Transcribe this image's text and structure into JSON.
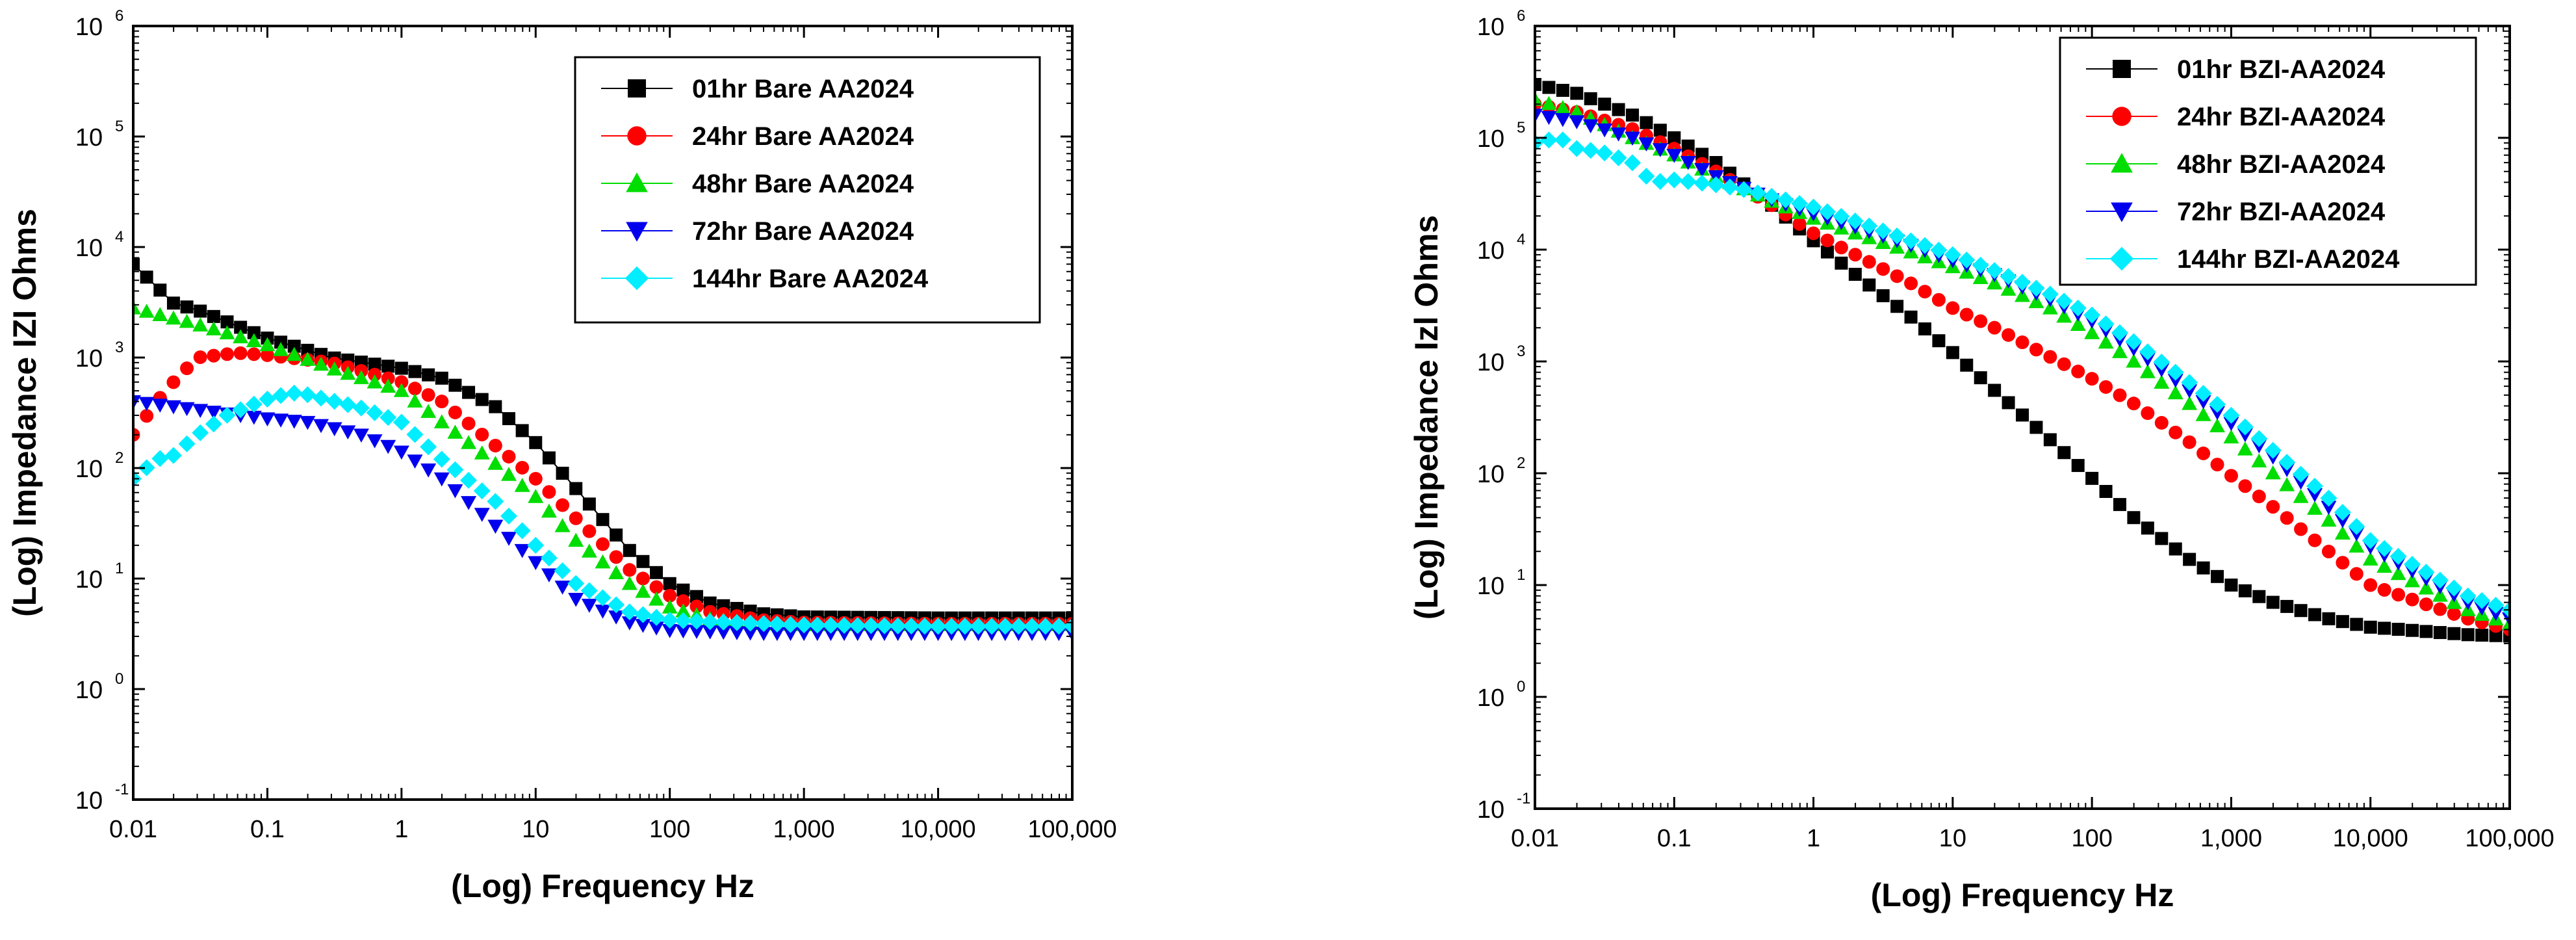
{
  "chart_data": [
    {
      "type": "scatter",
      "title": "",
      "xlabel": "(Log) Frequency Hz",
      "ylabel": "(Log) Impedance IZI Ohms",
      "xscale": "log",
      "yscale": "log",
      "xlim": [
        0.01,
        100000
      ],
      "ylim": [
        0.1,
        1000000
      ],
      "x_tick_labels": [
        "0.01",
        "0.1",
        "1",
        "10",
        "100",
        "1,000",
        "10,000",
        "100,000"
      ],
      "y_tick_labels": [
        {
          "base": "10",
          "exp": "-1"
        },
        {
          "base": "10",
          "exp": "0"
        },
        {
          "base": "10",
          "exp": "1"
        },
        {
          "base": "10",
          "exp": "2"
        },
        {
          "base": "10",
          "exp": "3"
        },
        {
          "base": "10",
          "exp": "4"
        },
        {
          "base": "10",
          "exp": "5"
        },
        {
          "base": "10",
          "exp": "6"
        }
      ],
      "legend_position": "top-right",
      "series": [
        {
          "name": "01hr  Bare AA2024",
          "color": "#000000",
          "marker": "square",
          "connected": true,
          "points": [
            [
              0.01,
              7000
            ],
            [
              0.02,
              3100
            ],
            [
              0.03,
              2700
            ],
            [
              0.1,
              1500
            ],
            [
              0.3,
              1000
            ],
            [
              1,
              800
            ],
            [
              2,
              650
            ],
            [
              5,
              360
            ],
            [
              10,
              170
            ],
            [
              20,
              65
            ],
            [
              50,
              18
            ],
            [
              100,
              9
            ],
            [
              200,
              6
            ],
            [
              500,
              4.8
            ],
            [
              1000,
              4.5
            ],
            [
              10000,
              4.4
            ],
            [
              100000,
              4.4
            ]
          ]
        },
        {
          "name": "24hr  Bare AA2024",
          "color": "#ff0000",
          "marker": "circle",
          "connected": false,
          "points": [
            [
              0.01,
              200
            ],
            [
              0.015,
              400
            ],
            [
              0.02,
              600
            ],
            [
              0.03,
              1000
            ],
            [
              0.06,
              1100
            ],
            [
              0.1,
              1050
            ],
            [
              0.3,
              900
            ],
            [
              1,
              600
            ],
            [
              2,
              400
            ],
            [
              5,
              160
            ],
            [
              10,
              80
            ],
            [
              20,
              35
            ],
            [
              50,
              12
            ],
            [
              100,
              7
            ],
            [
              200,
              5
            ],
            [
              500,
              4.2
            ],
            [
              1000,
              4
            ],
            [
              10000,
              3.9
            ],
            [
              100000,
              3.9
            ]
          ]
        },
        {
          "name": "48hr  Bare AA2024",
          "color": "#00dd00",
          "marker": "triangle-up",
          "connected": false,
          "points": [
            [
              0.01,
              2800
            ],
            [
              0.03,
              2000
            ],
            [
              0.1,
              1300
            ],
            [
              0.3,
              800
            ],
            [
              1,
              500
            ],
            [
              2,
              260
            ],
            [
              5,
              110
            ],
            [
              10,
              55
            ],
            [
              20,
              22
            ],
            [
              50,
              9
            ],
            [
              100,
              5.5
            ],
            [
              200,
              4.3
            ],
            [
              500,
              3.9
            ],
            [
              1000,
              3.8
            ],
            [
              10000,
              3.8
            ],
            [
              100000,
              3.8
            ]
          ]
        },
        {
          "name": "72hr  Bare AA2024",
          "color": "#0000ee",
          "marker": "triangle-down",
          "connected": false,
          "points": [
            [
              0.01,
              400
            ],
            [
              0.02,
              360
            ],
            [
              0.05,
              310
            ],
            [
              0.1,
              280
            ],
            [
              0.2,
              260
            ],
            [
              0.5,
              200
            ],
            [
              1,
              140
            ],
            [
              2,
              80
            ],
            [
              5,
              30
            ],
            [
              10,
              14
            ],
            [
              20,
              6.5
            ],
            [
              50,
              4
            ],
            [
              100,
              3.4
            ],
            [
              500,
              3.2
            ],
            [
              1000,
              3.2
            ],
            [
              10000,
              3.2
            ],
            [
              100000,
              3.2
            ]
          ]
        },
        {
          "name": "144hr Bare AA2024",
          "color": "#00eeff",
          "marker": "diamond",
          "connected": false,
          "points": [
            [
              0.01,
              80
            ],
            [
              0.015,
              120
            ],
            [
              0.02,
              130
            ],
            [
              0.03,
              200
            ],
            [
              0.05,
              300
            ],
            [
              0.08,
              380
            ],
            [
              0.1,
              420
            ],
            [
              0.15,
              480
            ],
            [
              0.2,
              460
            ],
            [
              0.5,
              350
            ],
            [
              1,
              260
            ],
            [
              2,
              120
            ],
            [
              5,
              50
            ],
            [
              10,
              20
            ],
            [
              20,
              9
            ],
            [
              50,
              5
            ],
            [
              100,
              4.2
            ],
            [
              1000,
              3.8
            ],
            [
              10000,
              3.7
            ],
            [
              100000,
              3.7
            ]
          ]
        }
      ]
    },
    {
      "type": "scatter",
      "title": "",
      "xlabel": "(Log) Frequency Hz",
      "ylabel": "(Log) Impedance Izl Ohms",
      "xscale": "log",
      "yscale": "log",
      "xlim": [
        0.01,
        100000
      ],
      "ylim": [
        0.1,
        1000000
      ],
      "x_tick_labels": [
        "0.01",
        "0.1",
        "1",
        "10",
        "100",
        "1,000",
        "10,000",
        "100,000"
      ],
      "y_tick_labels": [
        {
          "base": "10",
          "exp": "-1"
        },
        {
          "base": "10",
          "exp": "0"
        },
        {
          "base": "10",
          "exp": "1"
        },
        {
          "base": "10",
          "exp": "2"
        },
        {
          "base": "10",
          "exp": "3"
        },
        {
          "base": "10",
          "exp": "4"
        },
        {
          "base": "10",
          "exp": "5"
        },
        {
          "base": "10",
          "exp": "6"
        }
      ],
      "legend_position": "top-right",
      "series": [
        {
          "name": "01hr  BZI-AA2024",
          "color": "#000000",
          "marker": "square",
          "connected": false,
          "points": [
            [
              0.01,
              300000
            ],
            [
              0.02,
              250000
            ],
            [
              0.05,
              160000
            ],
            [
              0.1,
              100000
            ],
            [
              0.2,
              60000
            ],
            [
              0.5,
              25000
            ],
            [
              1,
              12000
            ],
            [
              2,
              6000
            ],
            [
              5,
              2500
            ],
            [
              10,
              1200
            ],
            [
              20,
              550
            ],
            [
              50,
              200
            ],
            [
              100,
              90
            ],
            [
              200,
              40
            ],
            [
              500,
              17
            ],
            [
              1000,
              10
            ],
            [
              2000,
              7
            ],
            [
              5000,
              5
            ],
            [
              10000,
              4.2
            ],
            [
              50000,
              3.6
            ],
            [
              100000,
              3.5
            ]
          ]
        },
        {
          "name": "24hr  BZI-AA2024",
          "color": "#ff0000",
          "marker": "circle",
          "connected": false,
          "points": [
            [
              0.01,
              200000
            ],
            [
              0.02,
              170000
            ],
            [
              0.05,
              120000
            ],
            [
              0.1,
              80000
            ],
            [
              0.2,
              50000
            ],
            [
              0.5,
              25000
            ],
            [
              1,
              14000
            ],
            [
              2,
              9000
            ],
            [
              5,
              5000
            ],
            [
              10,
              3000
            ],
            [
              20,
              2000
            ],
            [
              50,
              1100
            ],
            [
              100,
              700
            ],
            [
              200,
              420
            ],
            [
              500,
              190
            ],
            [
              1000,
              95
            ],
            [
              2000,
              50
            ],
            [
              5000,
              20
            ],
            [
              10000,
              10
            ],
            [
              50000,
              5
            ],
            [
              100000,
              4
            ]
          ]
        },
        {
          "name": "48hr  BZI-AA2024",
          "color": "#00dd00",
          "marker": "triangle-up",
          "connected": false,
          "points": [
            [
              0.01,
              220000
            ],
            [
              0.02,
              170000
            ],
            [
              0.05,
              100000
            ],
            [
              0.1,
              70000
            ],
            [
              0.2,
              45000
            ],
            [
              0.5,
              27000
            ],
            [
              1,
              19000
            ],
            [
              2,
              14000
            ],
            [
              5,
              9500
            ],
            [
              10,
              7000
            ],
            [
              20,
              5000
            ],
            [
              50,
              3000
            ],
            [
              100,
              1800
            ],
            [
              200,
              1000
            ],
            [
              500,
              420
            ],
            [
              1000,
              210
            ],
            [
              2000,
              100
            ],
            [
              5000,
              38
            ],
            [
              10000,
              17
            ],
            [
              50000,
              6
            ],
            [
              100000,
              4.5
            ]
          ]
        },
        {
          "name": "72hr  BZI-AA2024",
          "color": "#0000ee",
          "marker": "triangle-down",
          "connected": false,
          "points": [
            [
              0.01,
              160000
            ],
            [
              0.02,
              140000
            ],
            [
              0.05,
              100000
            ],
            [
              0.1,
              70000
            ],
            [
              0.2,
              45000
            ],
            [
              0.5,
              28000
            ],
            [
              1,
              21000
            ],
            [
              2,
              16000
            ],
            [
              5,
              11000
            ],
            [
              10,
              8000
            ],
            [
              20,
              6000
            ],
            [
              50,
              3600
            ],
            [
              100,
              2300
            ],
            [
              200,
              1300
            ],
            [
              500,
              550
            ],
            [
              1000,
              280
            ],
            [
              2000,
              140
            ],
            [
              5000,
              50
            ],
            [
              10000,
              22
            ],
            [
              50000,
              7
            ],
            [
              100000,
              5
            ]
          ]
        },
        {
          "name": "144hr BZI-AA2024",
          "color": "#00eeff",
          "marker": "diamond",
          "connected": false,
          "points": [
            [
              0.01,
              90000
            ],
            [
              0.015,
              100000
            ],
            [
              0.02,
              80000
            ],
            [
              0.03,
              75000
            ],
            [
              0.05,
              60000
            ],
            [
              0.07,
              40000
            ],
            [
              0.1,
              42000
            ],
            [
              0.2,
              38000
            ],
            [
              0.3,
              35000
            ],
            [
              0.5,
              30000
            ],
            [
              1,
              24000
            ],
            [
              2,
              18000
            ],
            [
              5,
              12000
            ],
            [
              10,
              9000
            ],
            [
              20,
              6500
            ],
            [
              50,
              4000
            ],
            [
              100,
              2600
            ],
            [
              200,
              1500
            ],
            [
              500,
              650
            ],
            [
              1000,
              330
            ],
            [
              2000,
              160
            ],
            [
              5000,
              60
            ],
            [
              10000,
              25
            ],
            [
              50000,
              8
            ],
            [
              100000,
              6
            ]
          ]
        }
      ]
    }
  ]
}
